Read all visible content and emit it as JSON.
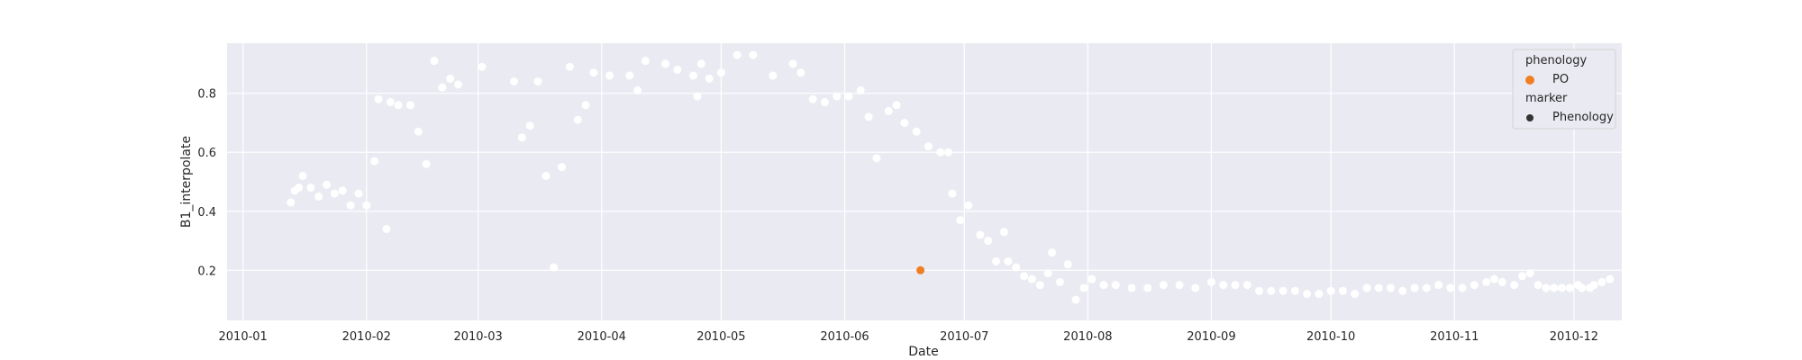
{
  "chart_data": {
    "type": "scatter",
    "title": "",
    "xlabel": "Date",
    "ylabel": "B1_interpolate",
    "x_ticks": [
      "2010-01",
      "2010-02",
      "2010-03",
      "2010-04",
      "2010-05",
      "2010-06",
      "2010-07",
      "2010-08",
      "2010-09",
      "2010-10",
      "2010-11",
      "2010-12"
    ],
    "y_ticks": [
      "0.2",
      "0.4",
      "0.6",
      "0.8"
    ],
    "xlim": [
      "2009-12-28",
      "2010-12-13"
    ],
    "ylim": [
      0.03,
      0.97
    ],
    "grid": true,
    "legend_position": "top-right",
    "legend": {
      "title_hue": "phenology",
      "hue_entries": [
        {
          "label": "PO",
          "color": "#f07f23"
        }
      ],
      "title_marker": "marker",
      "marker_entries": [
        {
          "label": "Phenology",
          "color": "#333333"
        }
      ]
    },
    "colors": {
      "background": "#eaeaf2",
      "grid": "#ffffff",
      "raw_points": "#ffffff",
      "curve_line": "#5f7f96",
      "curve_dots": "#2f4a63",
      "phenology_point": "#f07f23"
    },
    "raw_points": [
      [
        "2010-01-13",
        0.43
      ],
      [
        "2010-01-14",
        0.47
      ],
      [
        "2010-01-15",
        0.48
      ],
      [
        "2010-01-16",
        0.52
      ],
      [
        "2010-01-18",
        0.48
      ],
      [
        "2010-01-20",
        0.45
      ],
      [
        "2010-01-22",
        0.49
      ],
      [
        "2010-01-24",
        0.46
      ],
      [
        "2010-01-26",
        0.47
      ],
      [
        "2010-01-28",
        0.42
      ],
      [
        "2010-01-30",
        0.46
      ],
      [
        "2010-02-01",
        0.42
      ],
      [
        "2010-02-03",
        0.57
      ],
      [
        "2010-02-04",
        0.78
      ],
      [
        "2010-02-06",
        0.34
      ],
      [
        "2010-02-07",
        0.77
      ],
      [
        "2010-02-09",
        0.76
      ],
      [
        "2010-02-12",
        0.76
      ],
      [
        "2010-02-14",
        0.67
      ],
      [
        "2010-02-16",
        0.56
      ],
      [
        "2010-02-18",
        0.91
      ],
      [
        "2010-02-20",
        0.82
      ],
      [
        "2010-02-22",
        0.85
      ],
      [
        "2010-02-24",
        0.83
      ],
      [
        "2010-03-02",
        0.89
      ],
      [
        "2010-03-10",
        0.84
      ],
      [
        "2010-03-12",
        0.65
      ],
      [
        "2010-03-14",
        0.69
      ],
      [
        "2010-03-16",
        0.84
      ],
      [
        "2010-03-18",
        0.52
      ],
      [
        "2010-03-20",
        0.21
      ],
      [
        "2010-03-22",
        0.55
      ],
      [
        "2010-03-24",
        0.89
      ],
      [
        "2010-03-26",
        0.71
      ],
      [
        "2010-03-28",
        0.76
      ],
      [
        "2010-03-30",
        0.87
      ],
      [
        "2010-04-03",
        0.86
      ],
      [
        "2010-04-08",
        0.86
      ],
      [
        "2010-04-10",
        0.81
      ],
      [
        "2010-04-12",
        0.91
      ],
      [
        "2010-04-17",
        0.9
      ],
      [
        "2010-04-20",
        0.88
      ],
      [
        "2010-04-24",
        0.86
      ],
      [
        "2010-04-25",
        0.79
      ],
      [
        "2010-04-26",
        0.9
      ],
      [
        "2010-04-28",
        0.85
      ],
      [
        "2010-05-01",
        0.87
      ],
      [
        "2010-05-05",
        0.93
      ],
      [
        "2010-05-09",
        0.93
      ],
      [
        "2010-05-14",
        0.86
      ],
      [
        "2010-05-19",
        0.9
      ],
      [
        "2010-05-21",
        0.87
      ],
      [
        "2010-05-24",
        0.78
      ],
      [
        "2010-05-27",
        0.77
      ],
      [
        "2010-05-30",
        0.79
      ],
      [
        "2010-06-02",
        0.79
      ],
      [
        "2010-06-05",
        0.81
      ],
      [
        "2010-06-07",
        0.72
      ],
      [
        "2010-06-09",
        0.58
      ],
      [
        "2010-06-12",
        0.74
      ],
      [
        "2010-06-14",
        0.76
      ],
      [
        "2010-06-16",
        0.7
      ],
      [
        "2010-06-19",
        0.67
      ],
      [
        "2010-06-22",
        0.62
      ],
      [
        "2010-06-25",
        0.6
      ],
      [
        "2010-06-27",
        0.6
      ],
      [
        "2010-06-28",
        0.46
      ],
      [
        "2010-06-30",
        0.37
      ],
      [
        "2010-07-02",
        0.42
      ],
      [
        "2010-07-05",
        0.32
      ],
      [
        "2010-07-07",
        0.3
      ],
      [
        "2010-07-09",
        0.23
      ],
      [
        "2010-07-11",
        0.33
      ],
      [
        "2010-07-12",
        0.23
      ],
      [
        "2010-07-14",
        0.21
      ],
      [
        "2010-07-16",
        0.18
      ],
      [
        "2010-07-18",
        0.17
      ],
      [
        "2010-07-20",
        0.15
      ],
      [
        "2010-07-22",
        0.19
      ],
      [
        "2010-07-23",
        0.26
      ],
      [
        "2010-07-25",
        0.16
      ],
      [
        "2010-07-27",
        0.22
      ],
      [
        "2010-07-29",
        0.1
      ],
      [
        "2010-07-31",
        0.14
      ],
      [
        "2010-08-02",
        0.17
      ],
      [
        "2010-08-05",
        0.15
      ],
      [
        "2010-08-08",
        0.15
      ],
      [
        "2010-08-12",
        0.14
      ],
      [
        "2010-08-16",
        0.14
      ],
      [
        "2010-08-20",
        0.15
      ],
      [
        "2010-08-24",
        0.15
      ],
      [
        "2010-08-28",
        0.14
      ],
      [
        "2010-09-01",
        0.16
      ],
      [
        "2010-09-04",
        0.15
      ],
      [
        "2010-09-07",
        0.15
      ],
      [
        "2010-09-10",
        0.15
      ],
      [
        "2010-09-13",
        0.13
      ],
      [
        "2010-09-16",
        0.13
      ],
      [
        "2010-09-19",
        0.13
      ],
      [
        "2010-09-22",
        0.13
      ],
      [
        "2010-09-25",
        0.12
      ],
      [
        "2010-09-28",
        0.12
      ],
      [
        "2010-10-01",
        0.13
      ],
      [
        "2010-10-04",
        0.13
      ],
      [
        "2010-10-07",
        0.12
      ],
      [
        "2010-10-10",
        0.14
      ],
      [
        "2010-10-13",
        0.14
      ],
      [
        "2010-10-16",
        0.14
      ],
      [
        "2010-10-19",
        0.13
      ],
      [
        "2010-10-22",
        0.14
      ],
      [
        "2010-10-25",
        0.14
      ],
      [
        "2010-10-28",
        0.15
      ],
      [
        "2010-10-31",
        0.14
      ],
      [
        "2010-11-03",
        0.14
      ],
      [
        "2010-11-06",
        0.15
      ],
      [
        "2010-11-09",
        0.16
      ],
      [
        "2010-11-11",
        0.17
      ],
      [
        "2010-11-13",
        0.16
      ],
      [
        "2010-11-16",
        0.15
      ],
      [
        "2010-11-18",
        0.18
      ],
      [
        "2010-11-20",
        0.19
      ],
      [
        "2010-11-22",
        0.15
      ],
      [
        "2010-11-24",
        0.14
      ],
      [
        "2010-11-26",
        0.14
      ],
      [
        "2010-11-28",
        0.14
      ],
      [
        "2010-11-30",
        0.14
      ],
      [
        "2010-12-02",
        0.15
      ],
      [
        "2010-12-03",
        0.14
      ],
      [
        "2010-12-05",
        0.14
      ],
      [
        "2010-12-06",
        0.15
      ],
      [
        "2010-12-08",
        0.16
      ],
      [
        "2010-12-10",
        0.17
      ]
    ],
    "curve_points": [],
    "phenology_points": [
      {
        "label": "PO",
        "x": "2010-06-20",
        "y": 0.2
      }
    ]
  }
}
